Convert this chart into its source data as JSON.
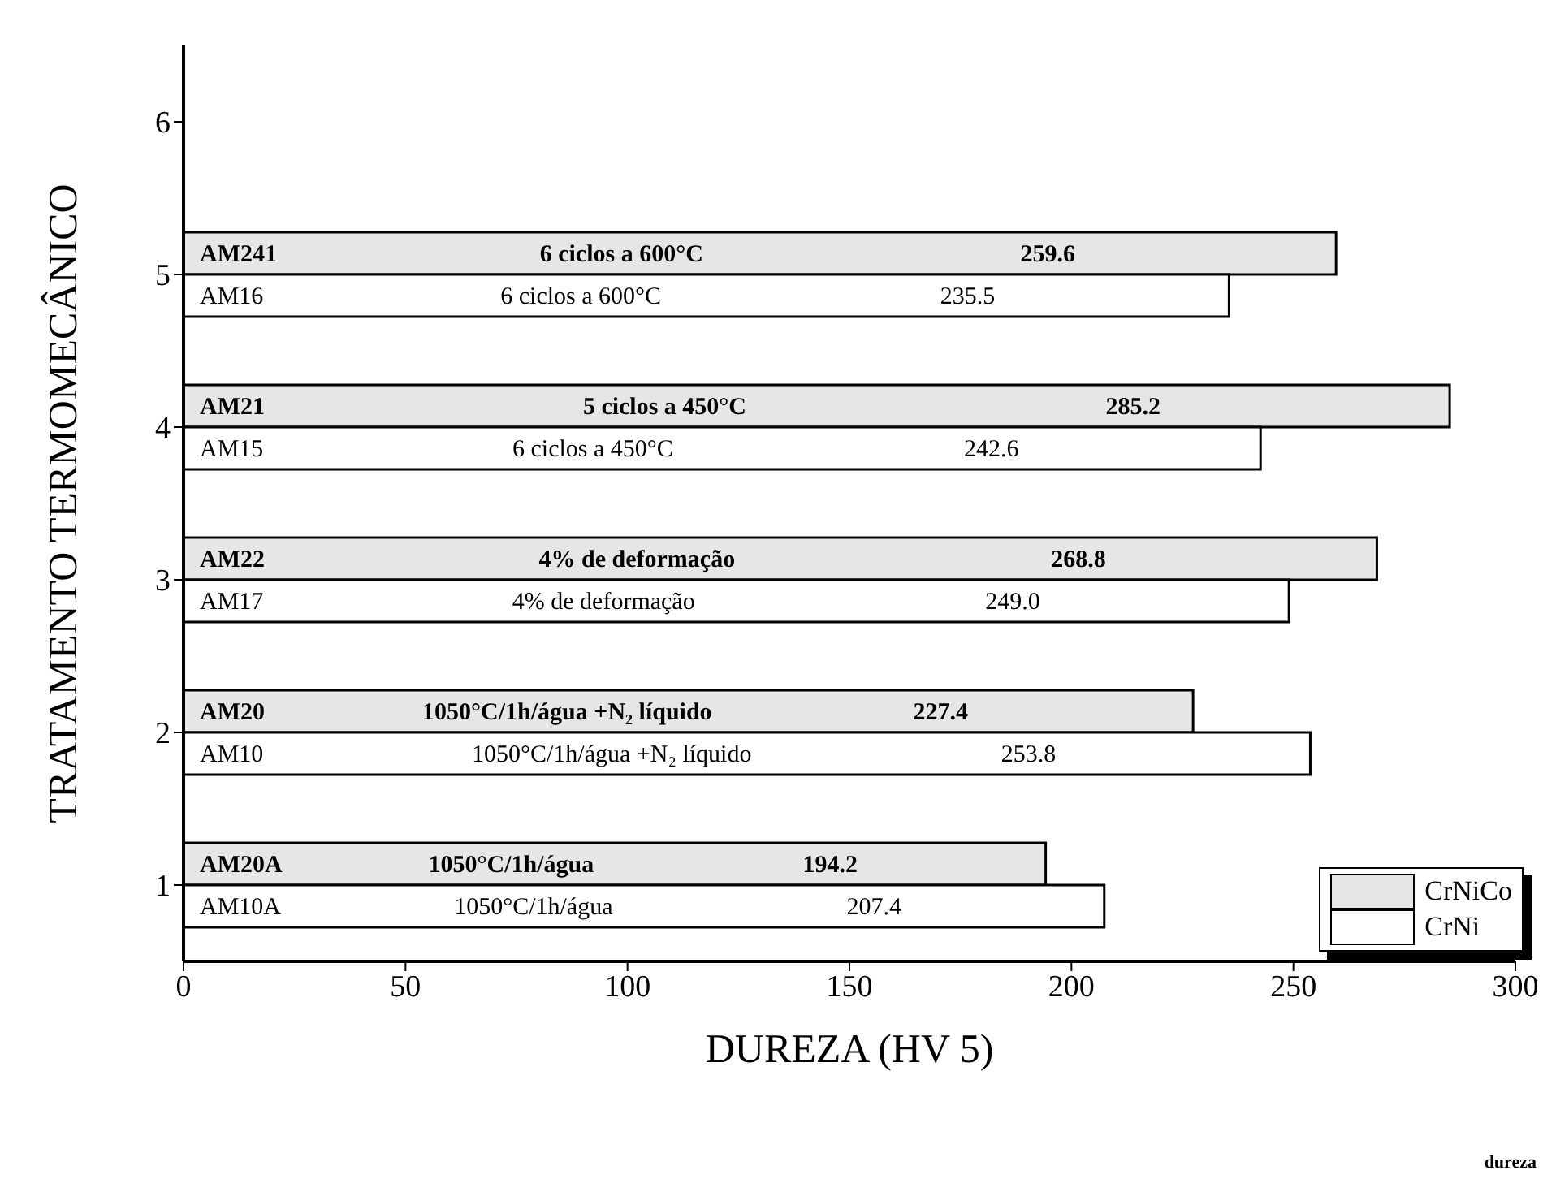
{
  "chart_data": {
    "type": "bar",
    "orientation": "horizontal",
    "xlabel": "DUREZA (HV 5)",
    "ylabel": "TRATAMENTO TERMOMECÂNICO",
    "categories": [
      "6",
      "5",
      "4",
      "3",
      "2",
      "1"
    ],
    "series": [
      {
        "name": "CrNiCo",
        "color": "#e6e6e6",
        "values": [
          null,
          259.6,
          285.2,
          268.8,
          227.4,
          194.2
        ],
        "value_labels": [
          null,
          "259.6",
          "285.2",
          "268.8",
          "227.4",
          "194.2"
        ]
      },
      {
        "name": "CrNi",
        "color": "#ffffff",
        "values": [
          null,
          235.5,
          242.6,
          249.0,
          253.8,
          207.4
        ],
        "value_labels": [
          null,
          "235.5",
          "242.6",
          "249.0",
          "253.8",
          "207.4"
        ]
      }
    ],
    "xlim": [
      0,
      300
    ],
    "xticks": [
      0,
      50,
      100,
      150,
      200,
      250,
      300
    ],
    "legend": "bottom right",
    "grid": false,
    "annotations": [
      "AM241",
      "6 ciclos a 600°C",
      "AM16",
      "6 ciclos a 600°C",
      "AM21",
      "5 ciclos a 450°C",
      "AM15",
      "6 ciclos a 450°C",
      "AM22",
      "4% de deformação",
      "AM17",
      "4% de deformação",
      "AM20",
      "1050°C/1h/água +N₂ líquido",
      "AM10",
      "1050°C/1h/água +N₂ líquido",
      "AM20A",
      "1050°C/1h/água",
      "AM10A",
      "1050°C/1h/água",
      "dureza"
    ]
  }
}
